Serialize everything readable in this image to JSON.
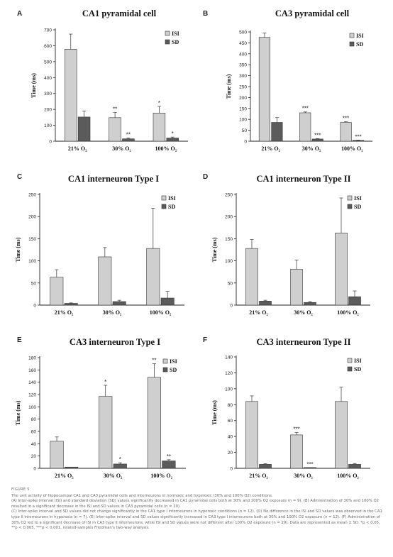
{
  "figure": {
    "label": "FIGURE 5",
    "caption": [
      "The unit activity of hippocampal CA1 and CA3 pyramidal cells and interneurons in normoxic and hyperoxic (30% and 100% O2) conditions.",
      "(A) Inter-spike interval (ISI) and standard deviation (SD) values significantly decreased in CA1 pyramidal cells both at 30% and 100% O2 exposure (n = 9). (B) Administration of 30% and 100% O2 resulted in a significant decrease in the ISI and SD values in CA3 pyramidal cells (n = 20).",
      "(C) Inter-spike interval and SD values did not change significantly in the CA1 type I interneurons in hyperoxic conditions (n = 12). (D) No difference in the ISI and SD values was observed in the CA1 type II interneurons in hyperoxia (n = 7). (E) Inter-spike interval and SD values significantly increased in CA3 type I interneurons both at 30% and 100% O2 exposure (n = 12). (F) Administration of 30% O2 led to a significant decrease of ISI in CA3 type II interneurons, while ISI and SD values were not different after 100% O2 exposure (n = 29). Data are represented as mean ± SD. *p < 0.05, **p < 0.005, ***p < 0.001, related-samples Friedman's two-way analysis."
    ]
  },
  "colors": {
    "isi": "#cfcfcf",
    "sd": "#5b5b5b",
    "axis": "#222222"
  },
  "chart_data": [
    {
      "panel": "A",
      "type": "bar",
      "title": "CA1 pyramidal cell",
      "categories": [
        "21% O₂",
        "30% O₂",
        "100% O₂"
      ],
      "ylabel": "Time (ms)",
      "ylim": [
        0,
        700
      ],
      "yticks": [
        0,
        100,
        200,
        300,
        400,
        500,
        600,
        700
      ],
      "legend_position": "top-right",
      "series": [
        {
          "name": "ISI",
          "values": [
            578,
            148,
            177
          ],
          "errors": [
            95,
            32,
            42
          ],
          "marks": [
            "",
            "**",
            "*"
          ]
        },
        {
          "name": "SD",
          "values": [
            152,
            15,
            20
          ],
          "errors": [
            38,
            5,
            6
          ],
          "marks": [
            "",
            "**",
            "*"
          ]
        }
      ]
    },
    {
      "panel": "B",
      "type": "bar",
      "title": "CA3 pyramidal cell",
      "categories": [
        "21% O₂",
        "30% O₂",
        "100% O₂"
      ],
      "ylabel": "Time (ms)",
      "ylim": [
        0,
        500
      ],
      "yticks": [
        0,
        50,
        100,
        150,
        200,
        250,
        300,
        350,
        400,
        450,
        500
      ],
      "legend_position": "top-right",
      "series": [
        {
          "name": "ISI",
          "values": [
            475,
            130,
            86
          ],
          "errors": [
            20,
            4,
            3
          ],
          "marks": [
            "",
            "***",
            "***"
          ]
        },
        {
          "name": "SD",
          "values": [
            86,
            10,
            4
          ],
          "errors": [
            22,
            2,
            1
          ],
          "marks": [
            "",
            "***",
            "***"
          ]
        }
      ]
    },
    {
      "panel": "C",
      "type": "bar",
      "title": "CA1 interneuron Type I",
      "categories": [
        "21% O₂",
        "30% O₂",
        "100% O₂"
      ],
      "ylabel": "Time (ms)",
      "ylim": [
        0,
        250
      ],
      "yticks": [
        0,
        50,
        100,
        150,
        200,
        250
      ],
      "legend_position": "top-right",
      "series": [
        {
          "name": "ISI",
          "values": [
            63,
            109,
            128
          ],
          "errors": [
            17,
            21,
            91
          ],
          "marks": [
            "",
            "",
            ""
          ]
        },
        {
          "name": "SD",
          "values": [
            4,
            8,
            16
          ],
          "errors": [
            1,
            3,
            15
          ],
          "marks": [
            "",
            "",
            ""
          ]
        }
      ]
    },
    {
      "panel": "D",
      "type": "bar",
      "title": "CA1 interneuron Type II",
      "categories": [
        "21% O₂",
        "30% O₂",
        "100% O₂"
      ],
      "ylabel": "Time (ms)",
      "ylim": [
        0,
        250
      ],
      "yticks": [
        0,
        50,
        100,
        150,
        200,
        250
      ],
      "legend_position": "top-right",
      "series": [
        {
          "name": "ISI",
          "values": [
            128,
            81,
            163
          ],
          "errors": [
            20,
            21,
            79
          ],
          "marks": [
            "",
            "",
            ""
          ]
        },
        {
          "name": "SD",
          "values": [
            9,
            6,
            19
          ],
          "errors": [
            2,
            2,
            13
          ],
          "marks": [
            "",
            "",
            ""
          ]
        }
      ]
    },
    {
      "panel": "E",
      "type": "bar",
      "title": "CA3 interneuron Type I",
      "categories": [
        "21% O₂",
        "30% O₂",
        "100% O₂"
      ],
      "ylabel": "Time (ms)",
      "ylim": [
        0,
        180
      ],
      "yticks": [
        0,
        20,
        40,
        60,
        80,
        100,
        120,
        140,
        160,
        180
      ],
      "legend_position": "top-right",
      "series": [
        {
          "name": "ISI",
          "values": [
            44,
            117,
            148
          ],
          "errors": [
            7,
            18,
            22
          ],
          "marks": [
            "",
            "*",
            "**"
          ]
        },
        {
          "name": "SD",
          "values": [
            2,
            7,
            12
          ],
          "errors": [
            0,
            2,
            2
          ],
          "marks": [
            "",
            "*",
            "**"
          ]
        }
      ]
    },
    {
      "panel": "F",
      "type": "bar",
      "title": "CA3 interneuron Type II",
      "categories": [
        "21% O₂",
        "30% O₂",
        "100% O₂"
      ],
      "ylabel": "Time (ms)",
      "ylim": [
        0,
        140
      ],
      "yticks": [
        0,
        20,
        40,
        60,
        80,
        100,
        120,
        140
      ],
      "legend_position": "top-right",
      "series": [
        {
          "name": "ISI",
          "values": [
            84,
            42,
            84
          ],
          "errors": [
            7,
            3,
            18
          ],
          "marks": [
            "",
            "***",
            ""
          ]
        },
        {
          "name": "SD",
          "values": [
            5,
            1,
            5
          ],
          "errors": [
            1,
            0,
            1
          ],
          "marks": [
            "",
            "***",
            ""
          ]
        }
      ]
    }
  ]
}
